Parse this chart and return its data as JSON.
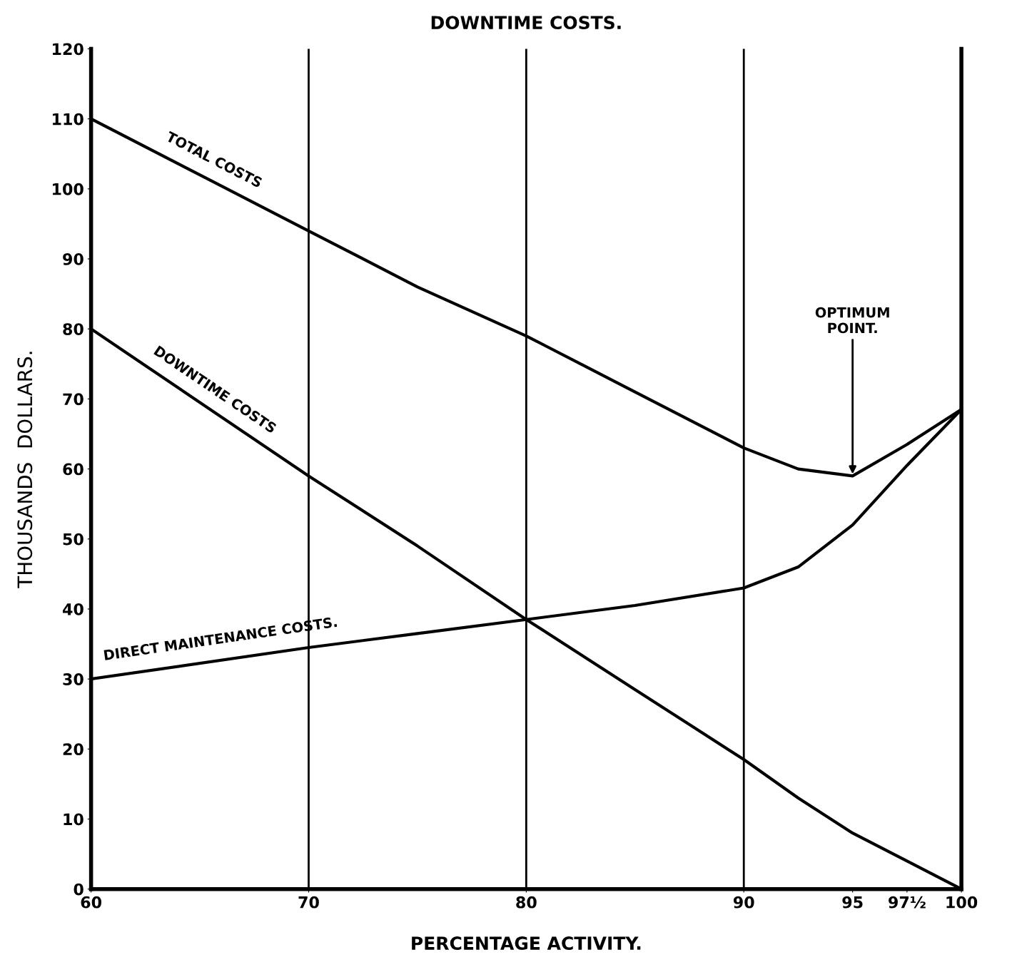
{
  "chart_data": {
    "type": "line",
    "title": "DOWNTIME COSTS.",
    "xlabel": "PERCENTAGE ACTIVITY.",
    "ylabel": "THOUSANDS  DOLLARS.",
    "x": [
      60,
      70,
      75,
      80,
      85,
      90,
      92.5,
      95,
      97.5,
      100
    ],
    "series": [
      {
        "name": "TOTAL COSTS",
        "color": "#000000",
        "values": [
          110,
          94,
          86,
          79,
          71,
          63,
          60,
          59,
          63.5,
          68.5
        ]
      },
      {
        "name": "DOWNTIME COSTS",
        "color": "#000000",
        "values": [
          80,
          59,
          49,
          38.5,
          28.5,
          18.5,
          13,
          8,
          4,
          0
        ]
      },
      {
        "name": "DIRECT MAINTENANCE COSTS.",
        "color": "#000000",
        "values": [
          30,
          34.5,
          36.5,
          38.5,
          40.5,
          43,
          46,
          52,
          60.5,
          68.5
        ]
      }
    ],
    "xlim": [
      60,
      100
    ],
    "ylim": [
      0,
      120
    ],
    "xticks": [
      60,
      70,
      80,
      90,
      95,
      {
        "value": 97.5,
        "label": "97½"
      },
      100
    ],
    "yticks": [
      0,
      10,
      20,
      30,
      40,
      50,
      60,
      70,
      80,
      90,
      100,
      110,
      120
    ],
    "ref_lines": [
      {
        "axis": "x",
        "value": 70,
        "label": null
      },
      {
        "axis": "x",
        "value": 80,
        "label": null
      },
      {
        "axis": "x",
        "value": 90,
        "label": null
      }
    ],
    "annotations": [
      {
        "text": "OPTIMUM\nPOINT.",
        "x": 95,
        "y": 59
      }
    ],
    "grid": false,
    "legend": false,
    "line_style": "solid",
    "marker": "none"
  }
}
